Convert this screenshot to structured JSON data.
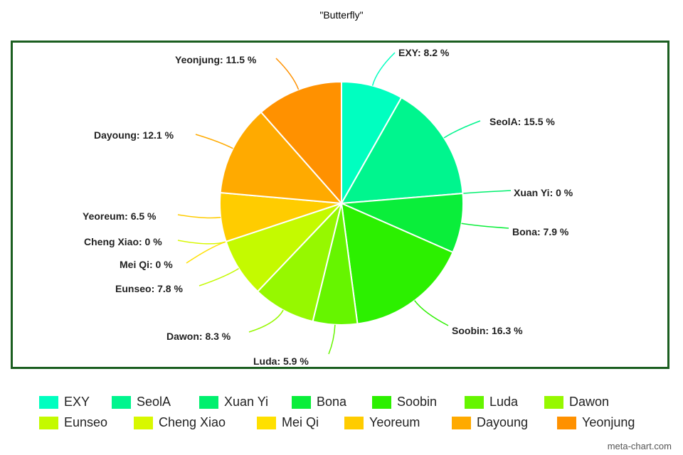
{
  "chart_data": {
    "type": "pie",
    "title": "\"Butterfly\"",
    "legend_position": "bottom",
    "slices": [
      {
        "name": "EXY",
        "value": 8.2,
        "label": "EXY: 8.2 %",
        "color": "#00ffc0"
      },
      {
        "name": "SeolA",
        "value": 15.5,
        "label": "SeolA: 15.5 %",
        "color": "#00f58e"
      },
      {
        "name": "Xuan Yi",
        "value": 0,
        "label": "Xuan Yi: 0 %",
        "color": "#00f06e"
      },
      {
        "name": "Bona",
        "value": 7.9,
        "label": "Bona: 7.9 %",
        "color": "#0aee3a"
      },
      {
        "name": "Soobin",
        "value": 16.3,
        "label": "Soobin: 16.3 %",
        "color": "#2cf000"
      },
      {
        "name": "Luda",
        "value": 5.9,
        "label": "Luda: 5.9 %",
        "color": "#66f500"
      },
      {
        "name": "Dawon",
        "value": 8.3,
        "label": "Dawon: 8.3 %",
        "color": "#96f800"
      },
      {
        "name": "Eunseo",
        "value": 7.8,
        "label": "Eunseo: 7.8 %",
        "color": "#c4fa00"
      },
      {
        "name": "Cheng Xiao",
        "value": 0,
        "label": "Cheng Xiao: 0 %",
        "color": "#d8f800"
      },
      {
        "name": "Mei Qi",
        "value": 0,
        "label": "Mei Qi: 0 %",
        "color": "#ffe000"
      },
      {
        "name": "Yeoreum",
        "value": 6.5,
        "label": "Yeoreum: 6.5 %",
        "color": "#ffcc00"
      },
      {
        "name": "Dayoung",
        "value": 12.1,
        "label": "Dayoung: 12.1 %",
        "color": "#ffaa00"
      },
      {
        "name": "Yeonjung",
        "value": 11.5,
        "label": "Yeonjung: 11.5 %",
        "color": "#ff9100"
      }
    ]
  },
  "footer": {
    "watermark": "meta-chart.com"
  }
}
